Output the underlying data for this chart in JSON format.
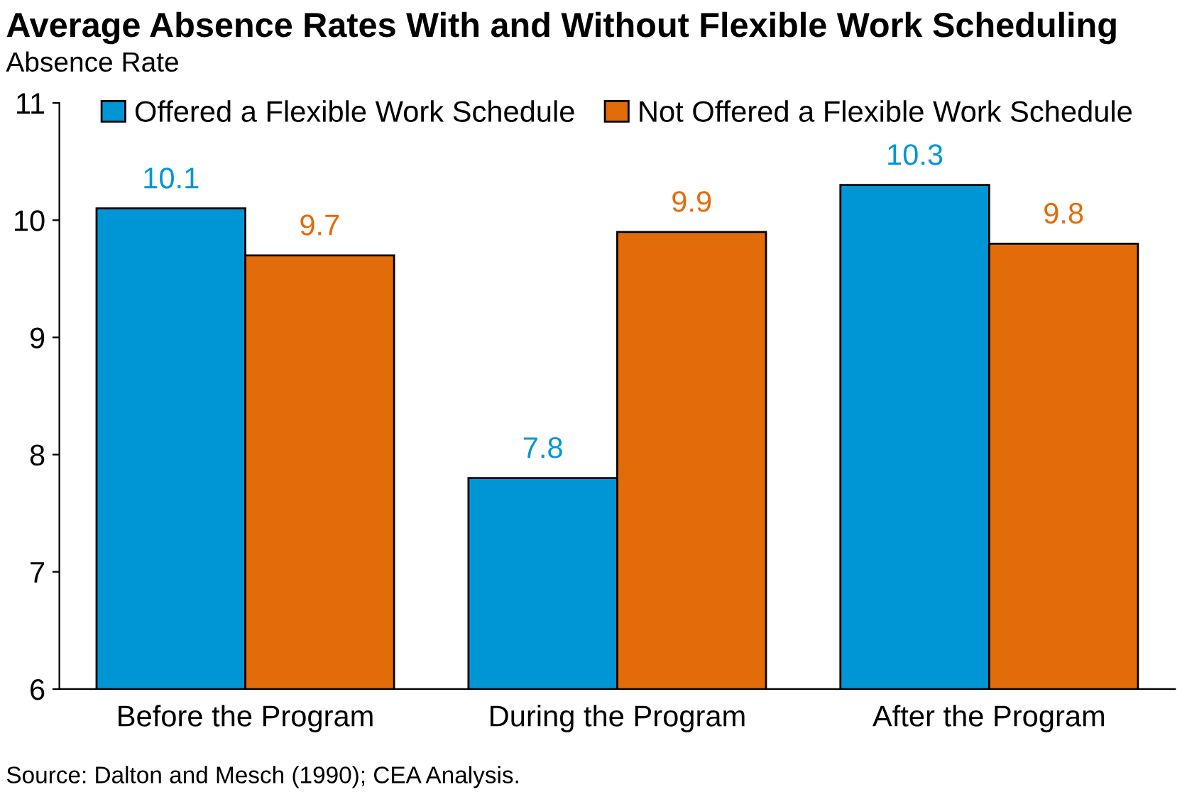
{
  "chart_data": {
    "type": "bar",
    "title": "Average Absence Rates With and Without Flexible Work Scheduling",
    "ylabel": "Absence Rate",
    "categories": [
      "Before the Program",
      "During the Program",
      "After the Program"
    ],
    "series": [
      {
        "name": "Offered a Flexible Work Schedule",
        "color": "#0096d6",
        "values": [
          10.1,
          7.8,
          10.3
        ]
      },
      {
        "name": "Not Offered a Flexible Work Schedule",
        "color": "#e36c0a",
        "values": [
          9.7,
          9.9,
          9.8
        ]
      }
    ],
    "ylim": [
      6,
      11
    ],
    "yticks": [
      6,
      7,
      8,
      9,
      10,
      11
    ],
    "grid": false,
    "legend": "top",
    "data_labels": true,
    "annotations": [
      "Source: Dalton and Mesch (1990); CEA Analysis."
    ]
  }
}
